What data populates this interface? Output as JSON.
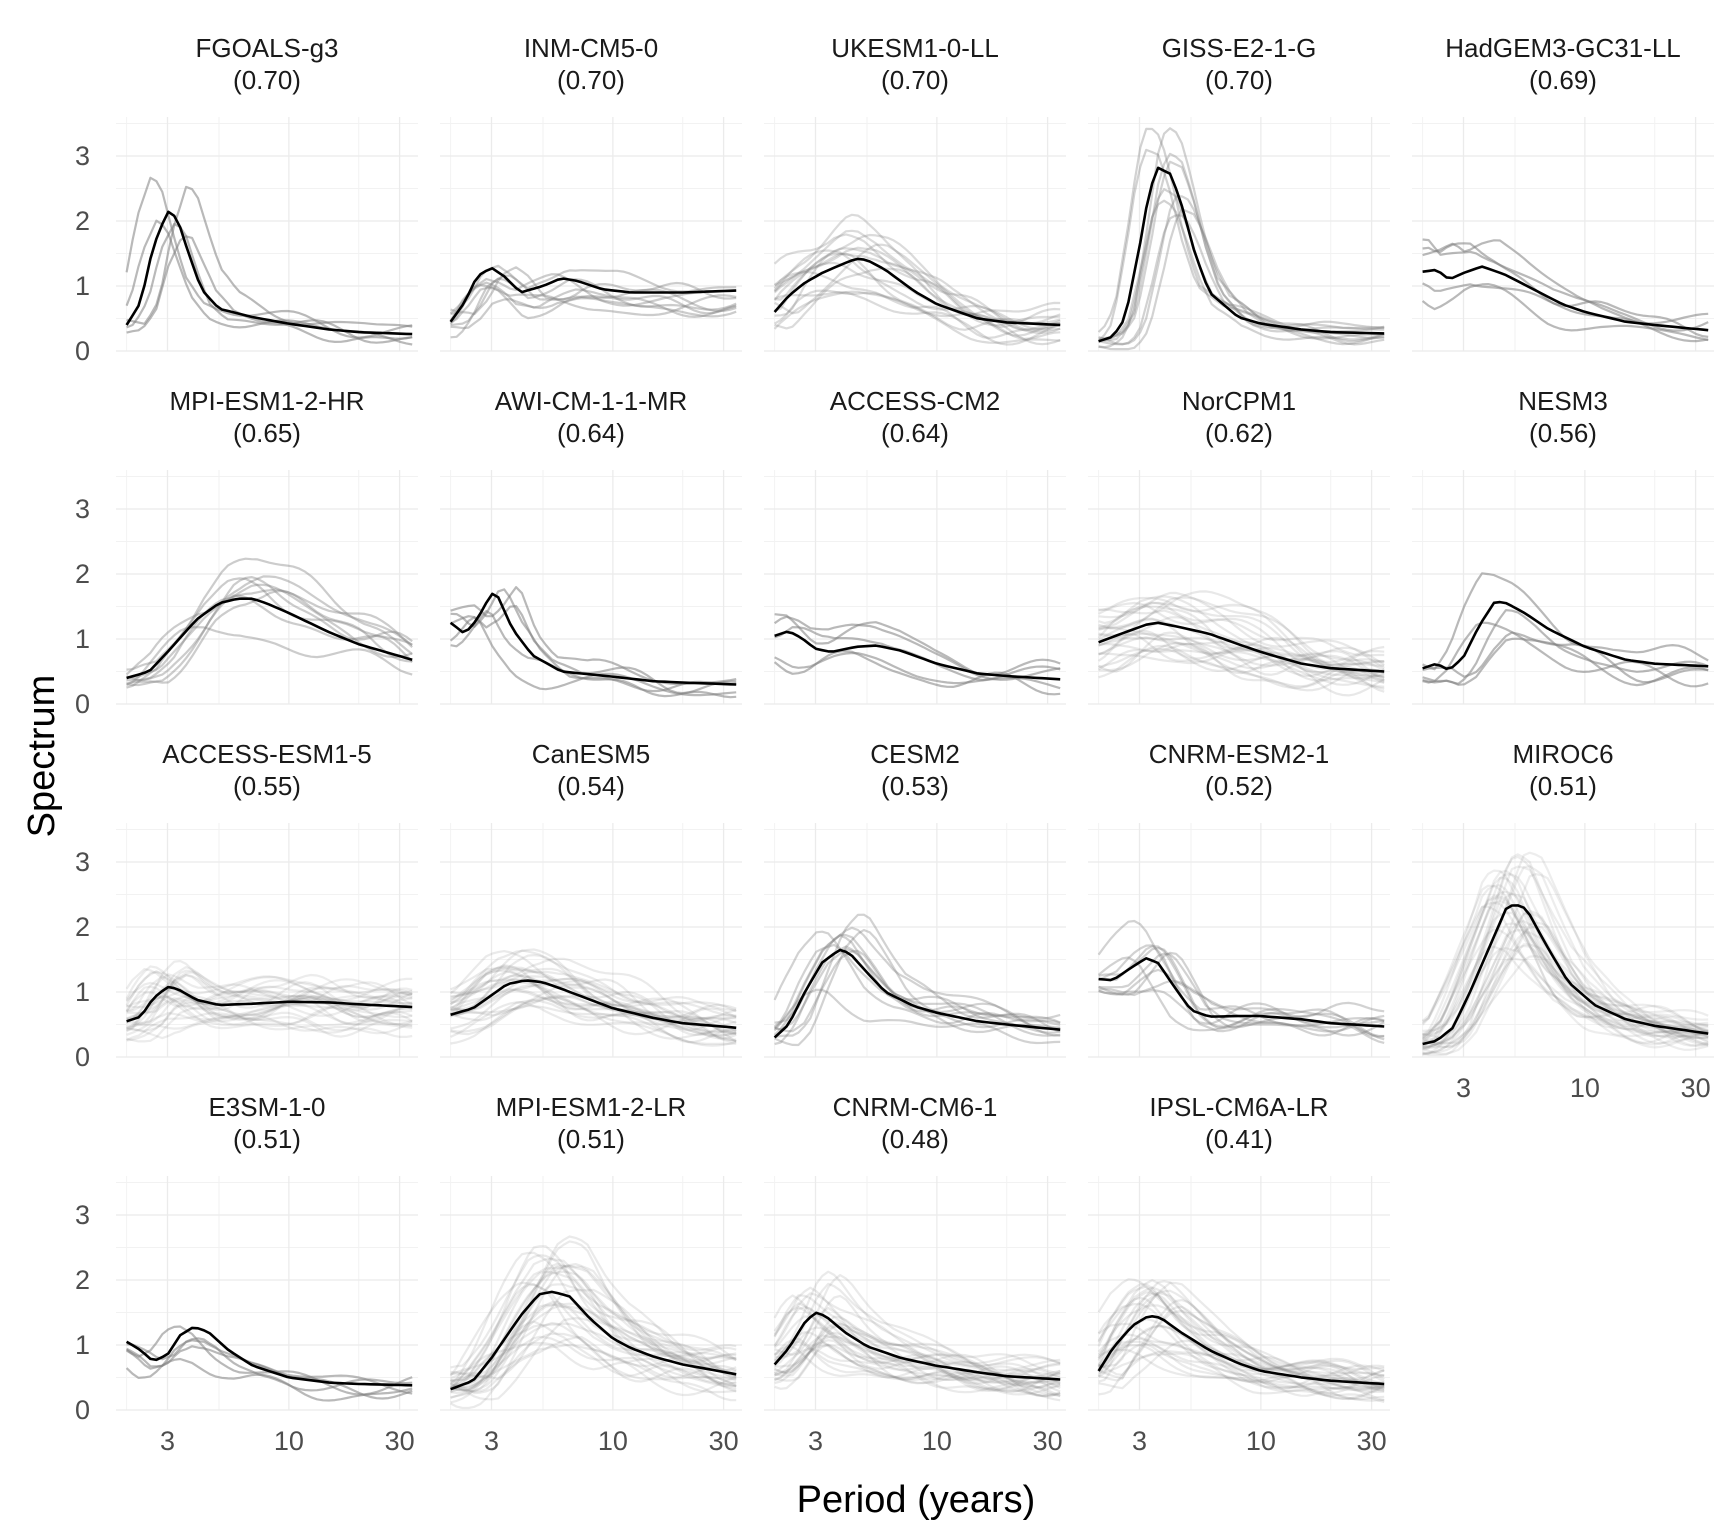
{
  "chart_data": {
    "type": "line",
    "xlabel": "Period (years)",
    "ylabel": "Spectrum",
    "x_scale": "log",
    "xlim": [
      1.8,
      36
    ],
    "ylim": [
      0,
      3.6
    ],
    "x_ticks": [
      3,
      10,
      30
    ],
    "x_tick_labels": [
      "3",
      "10",
      "30"
    ],
    "y_ticks": [
      0,
      1,
      2,
      3
    ],
    "y_tick_labels": [
      "0",
      "1",
      "2",
      "3"
    ],
    "grid": true,
    "colors": {
      "ensemble_mean": "#000000",
      "members": "#7f7f7f",
      "grid": "#ebebeb"
    },
    "panels": [
      {
        "model": "FGOALS-g3",
        "score": "(0.70)",
        "nmem": 5,
        "spread": 0.3,
        "alpha": 0.55,
        "mean": [
          [
            2,
            0.4
          ],
          [
            2.3,
            0.75
          ],
          [
            2.6,
            1.6
          ],
          [
            3,
            2.15
          ],
          [
            3.3,
            2.05
          ],
          [
            3.7,
            1.5
          ],
          [
            4.2,
            0.95
          ],
          [
            5,
            0.65
          ],
          [
            7,
            0.52
          ],
          [
            10,
            0.42
          ],
          [
            15,
            0.33
          ],
          [
            20,
            0.29
          ],
          [
            34,
            0.26
          ]
        ]
      },
      {
        "model": "INM-CM5-0",
        "score": "(0.70)",
        "nmem": 9,
        "spread": 0.35,
        "alpha": 0.4,
        "mean": [
          [
            2,
            0.45
          ],
          [
            2.3,
            0.75
          ],
          [
            2.6,
            1.15
          ],
          [
            3,
            1.28
          ],
          [
            3.4,
            1.15
          ],
          [
            4,
            0.9
          ],
          [
            5,
            1.0
          ],
          [
            6,
            1.12
          ],
          [
            7,
            1.08
          ],
          [
            9,
            0.95
          ],
          [
            12,
            0.9
          ],
          [
            20,
            0.9
          ],
          [
            34,
            0.93
          ]
        ]
      },
      {
        "model": "UKESM1-0-LL",
        "score": "(0.70)",
        "nmem": 16,
        "spread": 0.4,
        "alpha": 0.28,
        "mean": [
          [
            2,
            0.6
          ],
          [
            2.3,
            0.85
          ],
          [
            2.7,
            1.05
          ],
          [
            3.2,
            1.2
          ],
          [
            4,
            1.35
          ],
          [
            4.5,
            1.42
          ],
          [
            5,
            1.4
          ],
          [
            6,
            1.25
          ],
          [
            8,
            0.92
          ],
          [
            10,
            0.72
          ],
          [
            15,
            0.5
          ],
          [
            20,
            0.44
          ],
          [
            34,
            0.4
          ]
        ]
      },
      {
        "model": "GISS-E2-1-G",
        "score": "(0.70)",
        "nmem": 10,
        "spread": 0.25,
        "alpha": 0.35,
        "mean": [
          [
            2,
            0.15
          ],
          [
            2.3,
            0.22
          ],
          [
            2.6,
            0.5
          ],
          [
            3,
            1.6
          ],
          [
            3.3,
            2.45
          ],
          [
            3.6,
            2.82
          ],
          [
            4.1,
            2.72
          ],
          [
            4.6,
            2.2
          ],
          [
            5.2,
            1.5
          ],
          [
            6,
            0.9
          ],
          [
            8,
            0.52
          ],
          [
            10,
            0.42
          ],
          [
            15,
            0.33
          ],
          [
            20,
            0.29
          ],
          [
            34,
            0.27
          ]
        ]
      },
      {
        "model": "HadGEM3-GC31-LL",
        "score": "(0.69)",
        "nmem": 5,
        "spread": 0.35,
        "alpha": 0.55,
        "mean": [
          [
            2,
            1.22
          ],
          [
            2.3,
            1.25
          ],
          [
            2.6,
            1.1
          ],
          [
            3,
            1.2
          ],
          [
            3.6,
            1.3
          ],
          [
            4.5,
            1.18
          ],
          [
            6,
            0.95
          ],
          [
            8,
            0.72
          ],
          [
            10,
            0.6
          ],
          [
            15,
            0.45
          ],
          [
            20,
            0.4
          ],
          [
            34,
            0.32
          ]
        ]
      },
      {
        "model": "MPI-ESM1-2-HR",
        "score": "(0.65)",
        "nmem": 9,
        "spread": 0.45,
        "alpha": 0.4,
        "mean": [
          [
            2,
            0.4
          ],
          [
            2.5,
            0.5
          ],
          [
            3,
            0.8
          ],
          [
            4,
            1.3
          ],
          [
            5,
            1.55
          ],
          [
            6,
            1.62
          ],
          [
            7,
            1.62
          ],
          [
            8,
            1.55
          ],
          [
            10,
            1.4
          ],
          [
            15,
            1.1
          ],
          [
            20,
            0.92
          ],
          [
            34,
            0.68
          ]
        ]
      },
      {
        "model": "AWI-CM-1-1-MR",
        "score": "(0.64)",
        "nmem": 5,
        "spread": 0.35,
        "alpha": 0.55,
        "mean": [
          [
            2,
            1.25
          ],
          [
            2.3,
            1.08
          ],
          [
            2.6,
            1.3
          ],
          [
            3,
            1.7
          ],
          [
            3.2,
            1.65
          ],
          [
            3.7,
            1.15
          ],
          [
            4.5,
            0.75
          ],
          [
            6,
            0.5
          ],
          [
            10,
            0.42
          ],
          [
            15,
            0.35
          ],
          [
            20,
            0.33
          ],
          [
            34,
            0.3
          ]
        ]
      },
      {
        "model": "ACCESS-CM2",
        "score": "(0.64)",
        "nmem": 5,
        "spread": 0.35,
        "alpha": 0.55,
        "mean": [
          [
            2,
            1.05
          ],
          [
            2.3,
            1.12
          ],
          [
            2.6,
            1.02
          ],
          [
            3,
            0.85
          ],
          [
            3.5,
            0.8
          ],
          [
            4.5,
            0.88
          ],
          [
            5.5,
            0.9
          ],
          [
            7,
            0.82
          ],
          [
            10,
            0.62
          ],
          [
            15,
            0.47
          ],
          [
            20,
            0.43
          ],
          [
            34,
            0.38
          ]
        ]
      },
      {
        "model": "NorCPM1",
        "score": "(0.62)",
        "nmem": 26,
        "spread": 0.45,
        "alpha": 0.18,
        "mean": [
          [
            2,
            0.95
          ],
          [
            2.5,
            1.08
          ],
          [
            3.2,
            1.22
          ],
          [
            3.6,
            1.25
          ],
          [
            4.5,
            1.18
          ],
          [
            6,
            1.08
          ],
          [
            8,
            0.92
          ],
          [
            10,
            0.8
          ],
          [
            15,
            0.62
          ],
          [
            20,
            0.55
          ],
          [
            34,
            0.5
          ]
        ]
      },
      {
        "model": "NESM3",
        "score": "(0.56)",
        "nmem": 5,
        "spread": 0.35,
        "alpha": 0.55,
        "mean": [
          [
            2,
            0.55
          ],
          [
            2.3,
            0.62
          ],
          [
            2.6,
            0.52
          ],
          [
            3,
            0.72
          ],
          [
            3.5,
            1.2
          ],
          [
            4.1,
            1.58
          ],
          [
            4.6,
            1.55
          ],
          [
            5.5,
            1.4
          ],
          [
            7,
            1.15
          ],
          [
            10,
            0.88
          ],
          [
            15,
            0.68
          ],
          [
            20,
            0.62
          ],
          [
            34,
            0.58
          ]
        ]
      },
      {
        "model": "ACCESS-ESM1-5",
        "score": "(0.55)",
        "nmem": 30,
        "spread": 0.4,
        "alpha": 0.15,
        "mean": [
          [
            2,
            0.55
          ],
          [
            2.3,
            0.62
          ],
          [
            2.6,
            0.9
          ],
          [
            3,
            1.08
          ],
          [
            3.3,
            1.05
          ],
          [
            4,
            0.88
          ],
          [
            5,
            0.8
          ],
          [
            7,
            0.82
          ],
          [
            10,
            0.85
          ],
          [
            15,
            0.84
          ],
          [
            20,
            0.81
          ],
          [
            34,
            0.77
          ]
        ]
      },
      {
        "model": "CanESM5",
        "score": "(0.54)",
        "nmem": 28,
        "spread": 0.4,
        "alpha": 0.16,
        "mean": [
          [
            2,
            0.65
          ],
          [
            2.5,
            0.75
          ],
          [
            3,
            0.95
          ],
          [
            3.5,
            1.12
          ],
          [
            4.2,
            1.18
          ],
          [
            5,
            1.15
          ],
          [
            6,
            1.05
          ],
          [
            8,
            0.88
          ],
          [
            10,
            0.75
          ],
          [
            15,
            0.6
          ],
          [
            20,
            0.52
          ],
          [
            34,
            0.45
          ]
        ]
      },
      {
        "model": "CESM2",
        "score": "(0.53)",
        "nmem": 11,
        "spread": 0.35,
        "alpha": 0.35,
        "mean": [
          [
            2,
            0.3
          ],
          [
            2.3,
            0.5
          ],
          [
            2.7,
            1.0
          ],
          [
            3.2,
            1.45
          ],
          [
            3.8,
            1.65
          ],
          [
            4.2,
            1.6
          ],
          [
            5,
            1.3
          ],
          [
            6,
            1.0
          ],
          [
            8,
            0.78
          ],
          [
            10,
            0.68
          ],
          [
            15,
            0.55
          ],
          [
            20,
            0.5
          ],
          [
            34,
            0.42
          ]
        ]
      },
      {
        "model": "CNRM-ESM2-1",
        "score": "(0.52)",
        "nmem": 10,
        "spread": 0.4,
        "alpha": 0.35,
        "mean": [
          [
            2,
            1.2
          ],
          [
            2.3,
            1.18
          ],
          [
            2.7,
            1.35
          ],
          [
            3.2,
            1.52
          ],
          [
            3.6,
            1.45
          ],
          [
            4.2,
            1.1
          ],
          [
            5,
            0.72
          ],
          [
            6,
            0.62
          ],
          [
            8,
            0.63
          ],
          [
            10,
            0.63
          ],
          [
            15,
            0.58
          ],
          [
            20,
            0.52
          ],
          [
            34,
            0.47
          ]
        ]
      },
      {
        "model": "MIROC6",
        "score": "(0.51)",
        "nmem": 35,
        "spread": 0.35,
        "alpha": 0.14,
        "mean": [
          [
            2,
            0.2
          ],
          [
            2.3,
            0.25
          ],
          [
            2.7,
            0.45
          ],
          [
            3.2,
            1.0
          ],
          [
            4,
            1.8
          ],
          [
            4.6,
            2.3
          ],
          [
            5,
            2.35
          ],
          [
            5.6,
            2.28
          ],
          [
            7,
            1.65
          ],
          [
            8.5,
            1.15
          ],
          [
            11,
            0.8
          ],
          [
            15,
            0.58
          ],
          [
            20,
            0.48
          ],
          [
            34,
            0.36
          ]
        ]
      },
      {
        "model": "E3SM-1-0",
        "score": "(0.51)",
        "nmem": 5,
        "spread": 0.35,
        "alpha": 0.55,
        "mean": [
          [
            2,
            1.05
          ],
          [
            2.3,
            0.92
          ],
          [
            2.6,
            0.75
          ],
          [
            3,
            0.85
          ],
          [
            3.4,
            1.15
          ],
          [
            3.9,
            1.28
          ],
          [
            4.5,
            1.2
          ],
          [
            5.5,
            0.92
          ],
          [
            7,
            0.68
          ],
          [
            10,
            0.5
          ],
          [
            15,
            0.42
          ],
          [
            20,
            0.4
          ],
          [
            34,
            0.38
          ]
        ]
      },
      {
        "model": "MPI-ESM1-2-LR",
        "score": "(0.51)",
        "nmem": 30,
        "spread": 0.4,
        "alpha": 0.16,
        "mean": [
          [
            2,
            0.32
          ],
          [
            2.5,
            0.45
          ],
          [
            3,
            0.8
          ],
          [
            4,
            1.45
          ],
          [
            4.8,
            1.78
          ],
          [
            5.5,
            1.82
          ],
          [
            6.5,
            1.75
          ],
          [
            8,
            1.4
          ],
          [
            10,
            1.1
          ],
          [
            12,
            0.95
          ],
          [
            15,
            0.82
          ],
          [
            20,
            0.7
          ],
          [
            34,
            0.55
          ]
        ]
      },
      {
        "model": "CNRM-CM6-1",
        "score": "(0.48)",
        "nmem": 30,
        "spread": 0.35,
        "alpha": 0.16,
        "mean": [
          [
            2,
            0.7
          ],
          [
            2.3,
            0.95
          ],
          [
            2.7,
            1.35
          ],
          [
            3,
            1.5
          ],
          [
            3.3,
            1.45
          ],
          [
            4,
            1.2
          ],
          [
            5,
            0.98
          ],
          [
            7,
            0.8
          ],
          [
            10,
            0.68
          ],
          [
            15,
            0.58
          ],
          [
            20,
            0.52
          ],
          [
            34,
            0.47
          ]
        ]
      },
      {
        "model": "IPSL-CM6A-LR",
        "score": "(0.41)",
        "nmem": 30,
        "spread": 0.35,
        "alpha": 0.16,
        "mean": [
          [
            2,
            0.6
          ],
          [
            2.3,
            0.95
          ],
          [
            2.8,
            1.3
          ],
          [
            3.3,
            1.45
          ],
          [
            3.7,
            1.42
          ],
          [
            4.5,
            1.2
          ],
          [
            6,
            0.92
          ],
          [
            8,
            0.72
          ],
          [
            10,
            0.6
          ],
          [
            15,
            0.5
          ],
          [
            20,
            0.45
          ],
          [
            34,
            0.4
          ]
        ]
      }
    ]
  }
}
